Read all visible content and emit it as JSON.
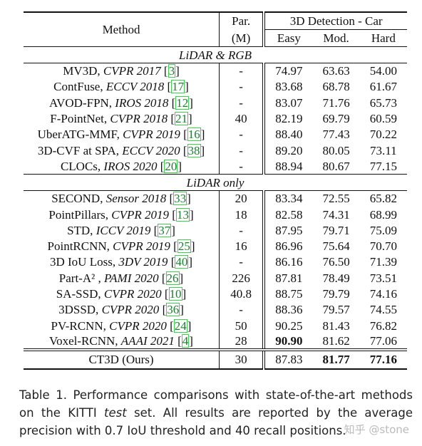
{
  "table": {
    "header": {
      "method": "Method",
      "par_line1": "Par.",
      "par_line2": "(M)",
      "group": "3D Detection - Car",
      "easy": "Easy",
      "mod": "Mod.",
      "hard": "Hard"
    },
    "sections": [
      {
        "title": "LiDAR & RGB",
        "rows": [
          {
            "name": "MV3D, ",
            "venue": "CVPR 2017",
            "ref": "3",
            "par": "-",
            "easy": "74.97",
            "mod": "63.63",
            "hard": "54.00"
          },
          {
            "name": "ContFuse, ",
            "venue": "ECCV 2018",
            "ref": "17",
            "par": "-",
            "easy": "83.68",
            "mod": "68.78",
            "hard": "61.67"
          },
          {
            "name": "AVOD-FPN, ",
            "venue": "IROS 2018",
            "ref": "12",
            "par": "-",
            "easy": "83.07",
            "mod": "71.76",
            "hard": "65.73"
          },
          {
            "name": "F-PointNet, ",
            "venue": "CVPR 2018",
            "ref": "21",
            "par": "40",
            "easy": "82.19",
            "mod": "69.79",
            "hard": "60.59"
          },
          {
            "name": "UberATG-MMF, ",
            "venue": "CVPR 2019",
            "ref": "16",
            "par": "-",
            "easy": "88.40",
            "mod": "77.43",
            "hard": "70.22"
          },
          {
            "name": "3D-CVF at SPA, ",
            "venue": "ECCV 2020",
            "ref": "38",
            "par": "-",
            "easy": "89.20",
            "mod": "80.05",
            "hard": "73.11"
          },
          {
            "name": "CLOCs, ",
            "venue": "IROS 2020",
            "ref": "20",
            "par": "-",
            "easy": "88.94",
            "mod": "80.67",
            "hard": "77.15"
          }
        ]
      },
      {
        "title": "LiDAR only",
        "rows": [
          {
            "name": "SECOND, ",
            "venue": "Sensor 2018",
            "ref": "33",
            "par": "20",
            "easy": "83.34",
            "mod": "72.55",
            "hard": "65.82"
          },
          {
            "name": "PointPillars, ",
            "venue": "CVPR 2019",
            "ref": "13",
            "par": "18",
            "easy": "82.58",
            "mod": "74.31",
            "hard": "68.99"
          },
          {
            "name": "STD, ",
            "venue": "ICCV 2019",
            "ref": "37",
            "par": "-",
            "easy": "87.95",
            "mod": "79.71",
            "hard": "75.09"
          },
          {
            "name": "PointRCNN, ",
            "venue": "CVPR 2019",
            "ref": "25",
            "par": "16",
            "easy": "86.96",
            "mod": "75.64",
            "hard": "70.70"
          },
          {
            "name": "3D IoU Loss, ",
            "venue": "3DV 2019",
            "ref": "40",
            "par": "-",
            "easy": "86.16",
            "mod": "76.50",
            "hard": "71.39"
          },
          {
            "name": "Part-A² , ",
            "venue": "PAMI 2020",
            "ref": "26",
            "par": "226",
            "easy": "87.81",
            "mod": "78.49",
            "hard": "73.51"
          },
          {
            "name": "SA-SSD, ",
            "venue": "CVPR 2020",
            "ref": "10",
            "par": "40.8",
            "easy": "88.75",
            "mod": "79.79",
            "hard": "74.16"
          },
          {
            "name": "3DSSD, ",
            "venue": "CVPR 2020",
            "ref": "36",
            "par": "-",
            "easy": "88.36",
            "mod": "79.57",
            "hard": "74.55"
          },
          {
            "name": "PV-RCNN, ",
            "venue": "CVPR 2020",
            "ref": "24",
            "par": "50",
            "easy": "90.25",
            "mod": "81.43",
            "hard": "76.82"
          },
          {
            "name": "Voxel-RCNN, ",
            "venue": "AAAI 2021",
            "ref": "4",
            "par": "28",
            "easy": "90.90",
            "mod": "81.62",
            "hard": "77.06",
            "bold_easy": true
          }
        ]
      }
    ],
    "ours": {
      "name": "CT3D (Ours)",
      "par": "30",
      "easy": "87.83",
      "mod": "81.77",
      "hard": "77.16"
    }
  },
  "caption": {
    "part1": "Table 1. Performance comparisons with state-of-the-art methods on the KITTI ",
    "italic": "test",
    "part2": " set. All results are reported by the average precision with 0.7 IoU threshold and 40 recall positions."
  },
  "watermark": "知乎 @stone"
}
